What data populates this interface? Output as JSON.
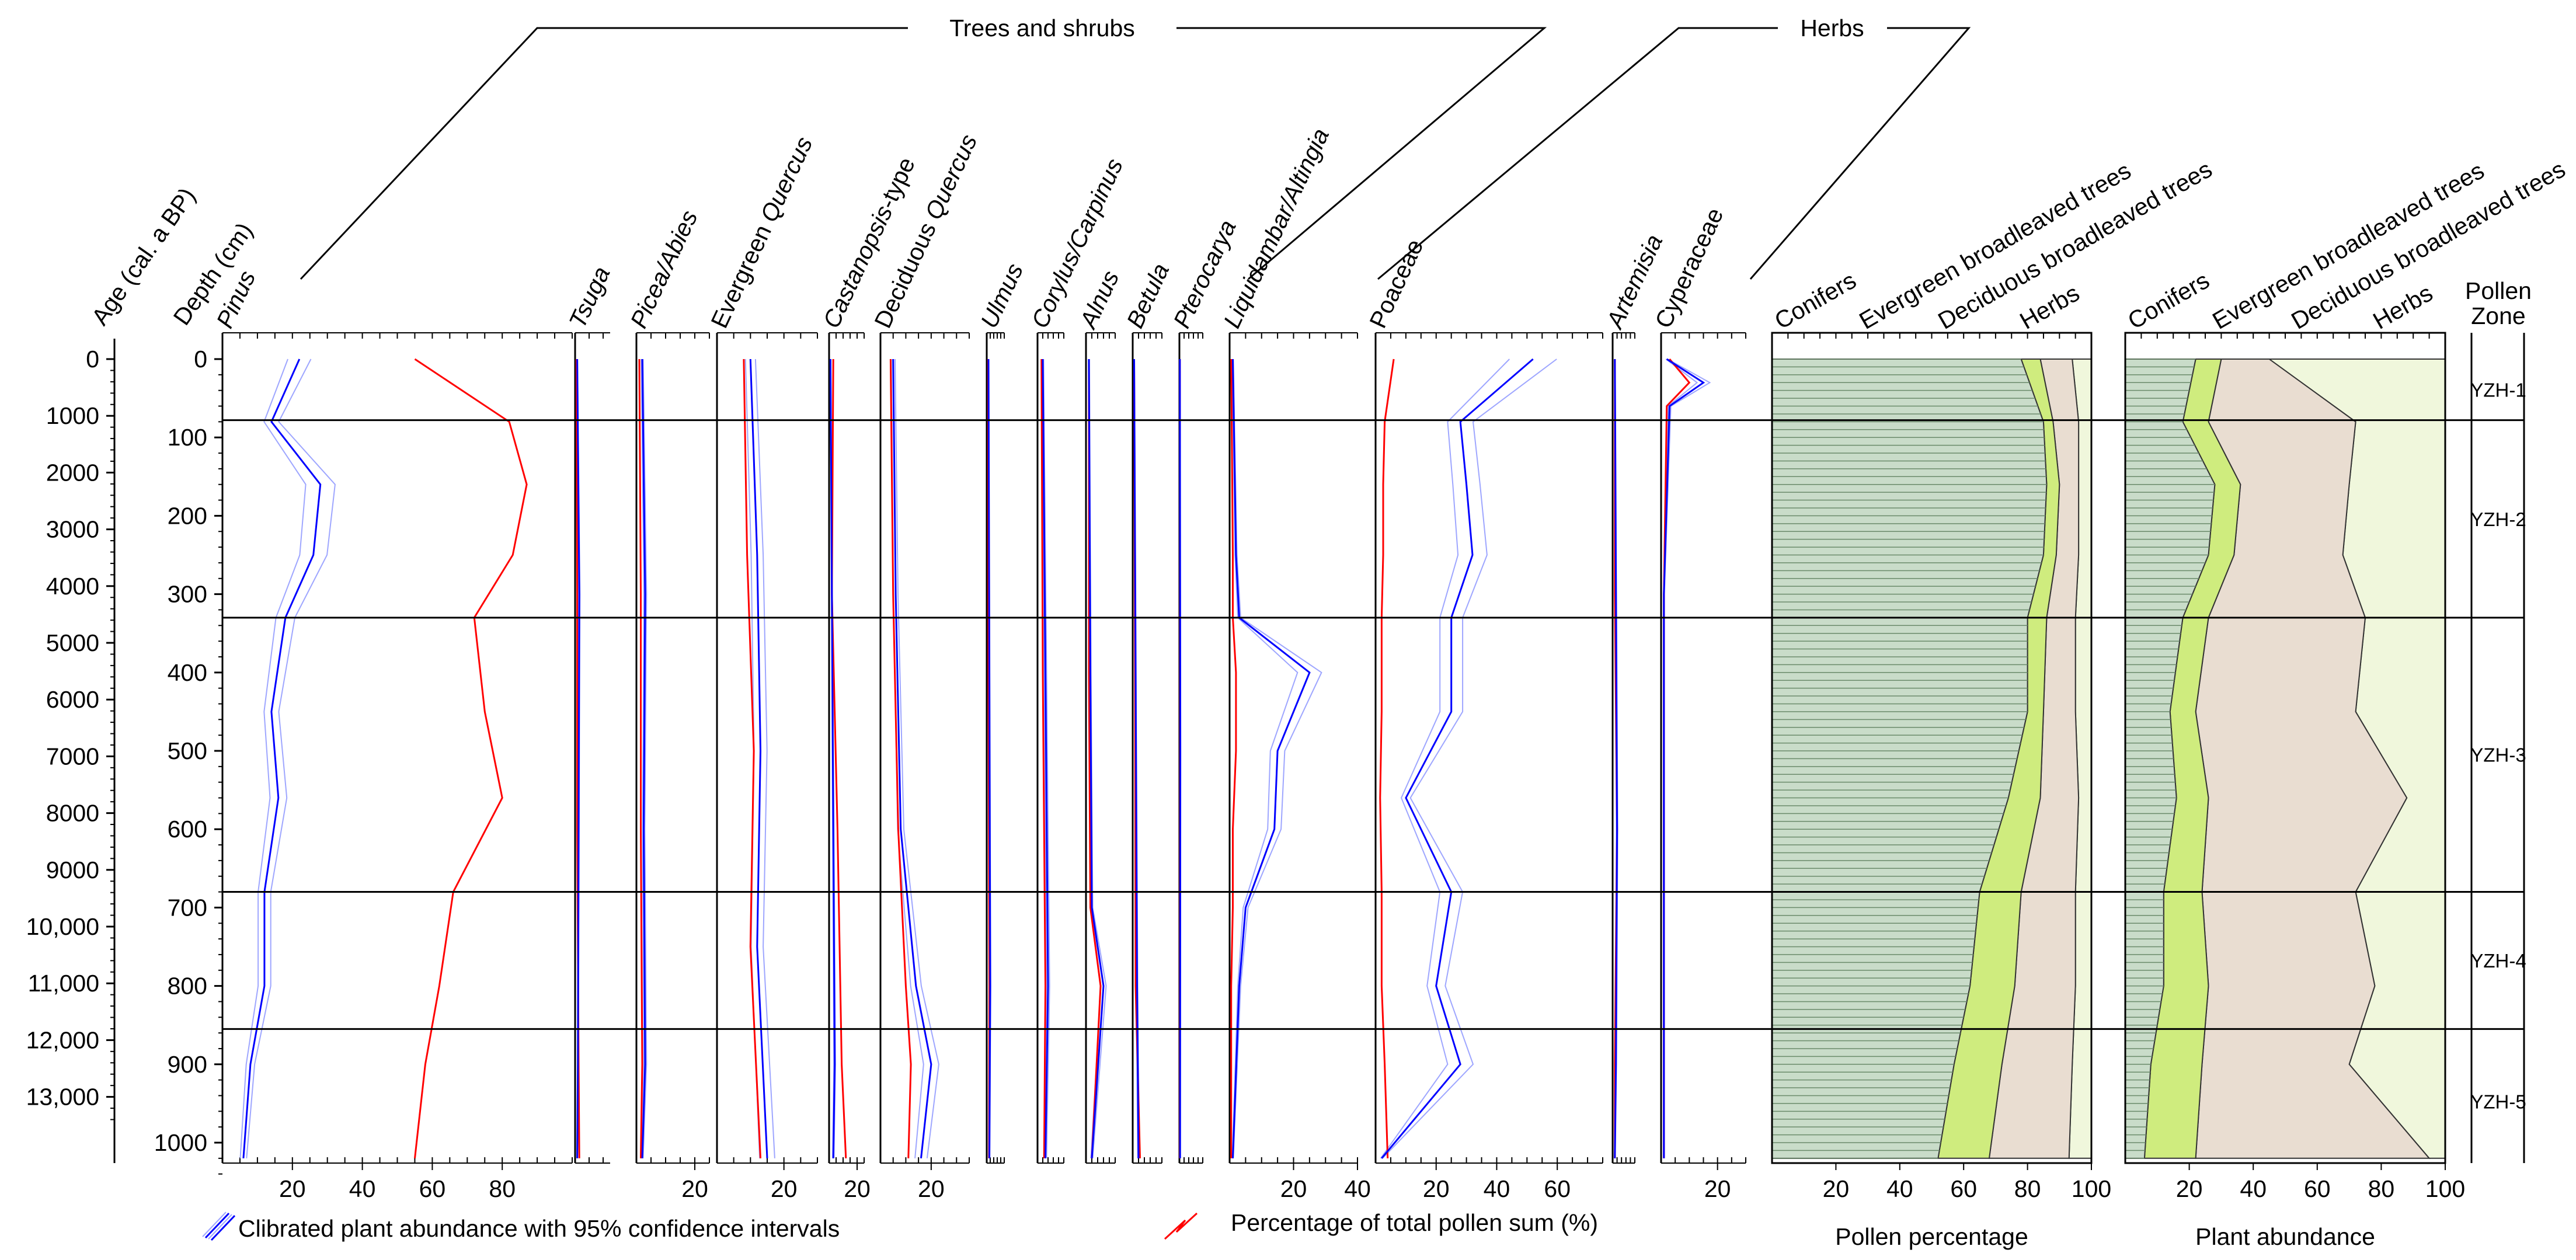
{
  "chart_data": {
    "type": "line",
    "title": "",
    "group_headers": [
      "Trees and shrubs",
      "Herbs"
    ],
    "y_axes": {
      "age_label": "Age (cal. a BP)",
      "age_ticks": [
        "0",
        "1000",
        "2000",
        "3000",
        "4000",
        "5000",
        "6000",
        "7000",
        "8000",
        "9000",
        "10,000",
        "11,000",
        "12,000",
        "13,000"
      ],
      "depth_label": "Depth (cm)",
      "depth_ticks": [
        "0",
        "100",
        "200",
        "300",
        "400",
        "500",
        "600",
        "700",
        "800",
        "900",
        "1000"
      ],
      "depth_range": [
        0,
        1040
      ]
    },
    "zone_label": "Pollen Zone",
    "zones": [
      {
        "name": "YZH-1",
        "top": 0,
        "bottom": 78
      },
      {
        "name": "YZH-2",
        "top": 78,
        "bottom": 330
      },
      {
        "name": "YZH-3",
        "top": 330,
        "bottom": 680
      },
      {
        "name": "YZH-4",
        "top": 680,
        "bottom": 855
      },
      {
        "name": "YZH-5",
        "top": 855,
        "bottom": 1040
      }
    ],
    "taxa": [
      {
        "name": "Pinus",
        "x_ticks": [
          "20",
          "40",
          "60",
          "80"
        ],
        "xlim": [
          0,
          100
        ],
        "abundance": [
          [
            0,
            22
          ],
          [
            80,
            14
          ],
          [
            160,
            28
          ],
          [
            250,
            26
          ],
          [
            330,
            18
          ],
          [
            450,
            14
          ],
          [
            560,
            16
          ],
          [
            680,
            12
          ],
          [
            800,
            12
          ],
          [
            900,
            8
          ],
          [
            1020,
            6
          ]
        ],
        "percentage": [
          [
            0,
            55
          ],
          [
            80,
            82
          ],
          [
            160,
            87
          ],
          [
            250,
            83
          ],
          [
            330,
            72
          ],
          [
            450,
            75
          ],
          [
            560,
            80
          ],
          [
            680,
            66
          ],
          [
            800,
            62
          ],
          [
            900,
            58
          ],
          [
            1020,
            55
          ]
        ]
      },
      {
        "name": "Tsuga",
        "x_ticks": [],
        "xlim": [
          0,
          5
        ],
        "abundance": [
          [
            0,
            0.3
          ],
          [
            300,
            0.6
          ],
          [
            600,
            0.5
          ],
          [
            900,
            0.4
          ],
          [
            1020,
            0.3
          ]
        ],
        "percentage": [
          [
            0,
            0.2
          ],
          [
            300,
            0.3
          ],
          [
            600,
            0.3
          ],
          [
            900,
            0.5
          ],
          [
            1020,
            0.6
          ]
        ]
      },
      {
        "name": "Picea/Abies",
        "x_ticks": [
          "20"
        ],
        "xlim": [
          0,
          25
        ],
        "abundance": [
          [
            0,
            2
          ],
          [
            300,
            3
          ],
          [
            600,
            2.5
          ],
          [
            900,
            3
          ],
          [
            1020,
            2
          ]
        ],
        "percentage": [
          [
            0,
            1
          ],
          [
            300,
            1.5
          ],
          [
            600,
            1.5
          ],
          [
            900,
            2
          ],
          [
            1020,
            1.5
          ]
        ]
      },
      {
        "name": "Evergreen Quercus",
        "x_ticks": [
          "20"
        ],
        "xlim": [
          0,
          30
        ],
        "abundance": [
          [
            0,
            10
          ],
          [
            250,
            12
          ],
          [
            500,
            13
          ],
          [
            750,
            12
          ],
          [
            1020,
            15
          ]
        ],
        "percentage": [
          [
            0,
            8
          ],
          [
            250,
            9
          ],
          [
            500,
            11
          ],
          [
            750,
            10
          ],
          [
            1020,
            13
          ]
        ]
      },
      {
        "name": "Castanopsis-type",
        "x_ticks": [
          "20"
        ],
        "xlim": [
          0,
          25
        ],
        "abundance": [
          [
            0,
            1
          ],
          [
            300,
            2
          ],
          [
            600,
            3
          ],
          [
            900,
            4
          ],
          [
            1020,
            3
          ]
        ],
        "percentage": [
          [
            0,
            3
          ],
          [
            300,
            2
          ],
          [
            600,
            6
          ],
          [
            900,
            9
          ],
          [
            1020,
            12
          ]
        ]
      },
      {
        "name": "Deciduous Quercus",
        "x_ticks": [
          "20"
        ],
        "xlim": [
          0,
          35
        ],
        "abundance": [
          [
            0,
            5
          ],
          [
            300,
            6
          ],
          [
            600,
            8
          ],
          [
            800,
            14
          ],
          [
            900,
            20
          ],
          [
            1020,
            16
          ]
        ],
        "percentage": [
          [
            0,
            4
          ],
          [
            300,
            5
          ],
          [
            600,
            7
          ],
          [
            800,
            10
          ],
          [
            900,
            12
          ],
          [
            1020,
            11
          ]
        ]
      },
      {
        "name": "Ulmus",
        "x_ticks": [],
        "xlim": [
          0,
          10
        ],
        "abundance": [
          [
            0,
            1
          ],
          [
            400,
            1.5
          ],
          [
            800,
            2
          ],
          [
            1020,
            1.5
          ]
        ],
        "percentage": [
          [
            0,
            0.8
          ],
          [
            400,
            1
          ],
          [
            800,
            1.5
          ],
          [
            1020,
            1.3
          ]
        ]
      },
      {
        "name": "Corylus/Carpinus",
        "x_ticks": [],
        "xlim": [
          0,
          10
        ],
        "abundance": [
          [
            0,
            2
          ],
          [
            400,
            3
          ],
          [
            800,
            4
          ],
          [
            1020,
            3
          ]
        ],
        "percentage": [
          [
            0,
            1.5
          ],
          [
            400,
            2
          ],
          [
            800,
            3
          ],
          [
            1020,
            2.5
          ]
        ]
      },
      {
        "name": "Alnus",
        "x_ticks": [],
        "xlim": [
          0,
          10
        ],
        "abundance": [
          [
            0,
            1
          ],
          [
            400,
            1.5
          ],
          [
            700,
            2
          ],
          [
            800,
            6
          ],
          [
            1020,
            2
          ]
        ],
        "percentage": [
          [
            0,
            1
          ],
          [
            400,
            1
          ],
          [
            700,
            1.5
          ],
          [
            800,
            5
          ],
          [
            1020,
            2
          ]
        ]
      },
      {
        "name": "Betula",
        "x_ticks": [],
        "xlim": [
          0,
          10
        ],
        "abundance": [
          [
            0,
            0.5
          ],
          [
            400,
            1
          ],
          [
            800,
            1.5
          ],
          [
            1020,
            2
          ]
        ],
        "percentage": [
          [
            0,
            0.5
          ],
          [
            400,
            0.8
          ],
          [
            800,
            1
          ],
          [
            1020,
            2.5
          ]
        ]
      },
      {
        "name": "Pterocarya",
        "x_ticks": [],
        "xlim": [
          0,
          10
        ],
        "abundance": [
          [
            0,
            0.2
          ],
          [
            500,
            0.4
          ],
          [
            1020,
            0.3
          ]
        ],
        "percentage": [
          [
            0,
            0.2
          ],
          [
            500,
            0.3
          ],
          [
            1020,
            0.2
          ]
        ]
      },
      {
        "name": "Liquidambar/Altingia",
        "x_ticks": [
          "20",
          "40"
        ],
        "xlim": [
          0,
          40
        ],
        "abundance": [
          [
            0,
            1
          ],
          [
            250,
            2
          ],
          [
            330,
            3
          ],
          [
            400,
            25
          ],
          [
            500,
            15
          ],
          [
            600,
            14
          ],
          [
            700,
            5
          ],
          [
            800,
            3
          ],
          [
            1020,
            1
          ]
        ],
        "percentage": [
          [
            0,
            0.5
          ],
          [
            250,
            1
          ],
          [
            330,
            1
          ],
          [
            400,
            2
          ],
          [
            500,
            2
          ],
          [
            600,
            1
          ],
          [
            700,
            1
          ],
          [
            800,
            0.5
          ],
          [
            1020,
            0.5
          ]
        ]
      },
      {
        "name": "Poaceae",
        "x_ticks": [
          "20",
          "40",
          "60"
        ],
        "xlim": [
          0,
          75
        ],
        "abundance": [
          [
            0,
            52
          ],
          [
            80,
            28
          ],
          [
            160,
            30
          ],
          [
            250,
            32
          ],
          [
            330,
            25
          ],
          [
            450,
            25
          ],
          [
            560,
            10
          ],
          [
            680,
            25
          ],
          [
            800,
            20
          ],
          [
            900,
            28
          ],
          [
            1020,
            2
          ]
        ],
        "percentage": [
          [
            0,
            6
          ],
          [
            80,
            3
          ],
          [
            160,
            2.5
          ],
          [
            250,
            2.5
          ],
          [
            330,
            2
          ],
          [
            450,
            2
          ],
          [
            560,
            1.5
          ],
          [
            680,
            2
          ],
          [
            800,
            2
          ],
          [
            900,
            3
          ],
          [
            1020,
            4
          ]
        ]
      },
      {
        "name": "Artemisia",
        "x_ticks": [],
        "xlim": [
          0,
          10
        ],
        "abundance": [
          [
            0,
            1
          ],
          [
            300,
            1.5
          ],
          [
            600,
            2
          ],
          [
            900,
            1.5
          ],
          [
            1020,
            1
          ]
        ],
        "percentage": [
          [
            0,
            1
          ],
          [
            300,
            1
          ],
          [
            600,
            2
          ],
          [
            900,
            1
          ],
          [
            1020,
            1
          ]
        ]
      },
      {
        "name": "Cyperaceae",
        "x_ticks": [
          "20"
        ],
        "xlim": [
          0,
          30
        ],
        "abundance": [
          [
            0,
            2
          ],
          [
            30,
            15
          ],
          [
            60,
            3
          ],
          [
            300,
            1
          ],
          [
            700,
            1
          ],
          [
            1020,
            1
          ]
        ],
        "percentage": [
          [
            0,
            3
          ],
          [
            30,
            10
          ],
          [
            60,
            2
          ],
          [
            300,
            1
          ],
          [
            700,
            1
          ],
          [
            1020,
            1
          ]
        ]
      }
    ],
    "stacked_panels": [
      {
        "caption": "Pollen percentage",
        "x_ticks": [
          "20",
          "40",
          "60",
          "80",
          "100"
        ],
        "xlim": [
          0,
          100
        ],
        "series_names": [
          "Conifers",
          "Evergreen broadleaved trees",
          "Deciduous broadleaved trees",
          "Herbs"
        ],
        "colors": [
          "#c9dcc9",
          "#cfec7e",
          "#e9ddd1",
          "#f0f7dc"
        ],
        "depth": [
          0,
          80,
          160,
          250,
          330,
          450,
          560,
          680,
          800,
          900,
          1020
        ],
        "cumulative": [
          [
            78,
            84,
            94,
            100
          ],
          [
            85,
            88,
            96,
            100
          ],
          [
            86,
            90,
            96,
            100
          ],
          [
            85,
            89,
            96,
            100
          ],
          [
            80,
            86,
            95,
            100
          ],
          [
            80,
            85,
            95,
            100
          ],
          [
            74,
            84,
            96,
            100
          ],
          [
            65,
            78,
            95,
            100
          ],
          [
            62,
            76,
            95,
            100
          ],
          [
            57,
            72,
            94,
            100
          ],
          [
            52,
            68,
            93,
            100
          ]
        ]
      },
      {
        "caption": "Plant abundance",
        "x_ticks": [
          "20",
          "40",
          "60",
          "80",
          "100"
        ],
        "xlim": [
          0,
          100
        ],
        "series_names": [
          "Conifers",
          "Evergreen broadleaved trees",
          "Deciduous broadleaved trees",
          "Herbs"
        ],
        "colors": [
          "#c9dcc9",
          "#cfec7e",
          "#e9ddd1",
          "#f0f7dc"
        ],
        "depth": [
          0,
          80,
          160,
          250,
          330,
          450,
          560,
          680,
          800,
          900,
          1020
        ],
        "cumulative": [
          [
            22,
            30,
            45,
            100
          ],
          [
            18,
            26,
            72,
            100
          ],
          [
            28,
            36,
            70,
            100
          ],
          [
            26,
            34,
            68,
            100
          ],
          [
            18,
            26,
            75,
            100
          ],
          [
            14,
            22,
            72,
            100
          ],
          [
            16,
            26,
            88,
            100
          ],
          [
            12,
            24,
            72,
            100
          ],
          [
            12,
            26,
            78,
            100
          ],
          [
            8,
            24,
            70,
            100
          ],
          [
            6,
            22,
            95,
            100
          ]
        ]
      }
    ],
    "legend": [
      {
        "label": "Clibrated plant abundance with 95% confidence intervals",
        "color": "#0000ff"
      },
      {
        "label": "Percentage of total pollen sum (%)",
        "color": "#ff0000"
      }
    ]
  }
}
